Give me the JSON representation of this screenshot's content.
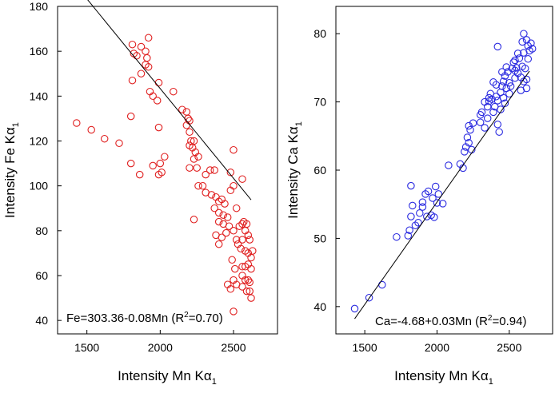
{
  "chart_data": [
    {
      "type": "scatter",
      "id": "fe",
      "color": "#e02020",
      "xlabel": "Intensity Mn Kα",
      "xlabel_sub": "1",
      "ylabel": "Intensity Fe Kα",
      "ylabel_sub": "1",
      "xlim": [
        1300,
        2800
      ],
      "ylim": [
        34,
        180
      ],
      "xticks": [
        1500,
        2000,
        2500
      ],
      "yticks": [
        40,
        60,
        80,
        100,
        120,
        140,
        160,
        180
      ],
      "equation_prefix": "Fe=303.36-0.08Mn (R",
      "equation_sup": "2",
      "equation_suffix": "=0.70)",
      "fit": {
        "x1": 1430,
        "x2": 2620,
        "intercept": 303.36,
        "slope": -0.08,
        "r2": 0.7
      },
      "points": [
        [
          1430,
          128
        ],
        [
          1530,
          125
        ],
        [
          1620,
          121
        ],
        [
          1720,
          119
        ],
        [
          1800,
          110
        ],
        [
          1860,
          105
        ],
        [
          1950,
          109
        ],
        [
          1990,
          105
        ],
        [
          2000,
          110
        ],
        [
          2010,
          106
        ],
        [
          2030,
          113
        ],
        [
          1810,
          163
        ],
        [
          1820,
          159
        ],
        [
          1840,
          158
        ],
        [
          1870,
          162
        ],
        [
          1900,
          160
        ],
        [
          1920,
          166
        ],
        [
          1910,
          157
        ],
        [
          1920,
          153
        ],
        [
          1900,
          154
        ],
        [
          1810,
          147
        ],
        [
          1870,
          150
        ],
        [
          1930,
          142
        ],
        [
          1950,
          140
        ],
        [
          1980,
          138
        ],
        [
          1990,
          146
        ],
        [
          1800,
          131
        ],
        [
          1990,
          126
        ],
        [
          2090,
          142
        ],
        [
          2150,
          134
        ],
        [
          2180,
          133
        ],
        [
          2190,
          130
        ],
        [
          2200,
          129
        ],
        [
          2180,
          127
        ],
        [
          2200,
          124
        ],
        [
          2210,
          120
        ],
        [
          2230,
          120
        ],
        [
          2200,
          118
        ],
        [
          2220,
          117
        ],
        [
          2240,
          115
        ],
        [
          2230,
          112
        ],
        [
          2260,
          113
        ],
        [
          2200,
          108
        ],
        [
          2250,
          108
        ],
        [
          2310,
          105
        ],
        [
          2340,
          107
        ],
        [
          2370,
          107
        ],
        [
          2480,
          106
        ],
        [
          2560,
          103
        ],
        [
          2260,
          100
        ],
        [
          2290,
          100
        ],
        [
          2310,
          97
        ],
        [
          2350,
          96
        ],
        [
          2380,
          95
        ],
        [
          2400,
          93
        ],
        [
          2420,
          94
        ],
        [
          2440,
          92
        ],
        [
          2370,
          90
        ],
        [
          2400,
          88
        ],
        [
          2430,
          87
        ],
        [
          2460,
          86
        ],
        [
          2400,
          84
        ],
        [
          2430,
          83
        ],
        [
          2470,
          82
        ],
        [
          2500,
          80
        ],
        [
          2380,
          78
        ],
        [
          2420,
          77
        ],
        [
          2450,
          79
        ],
        [
          2400,
          74
        ],
        [
          2230,
          85
        ],
        [
          2500,
          116
        ],
        [
          2520,
          90
        ],
        [
          2540,
          82
        ],
        [
          2560,
          83
        ],
        [
          2570,
          84
        ],
        [
          2580,
          80
        ],
        [
          2590,
          83
        ],
        [
          2600,
          78
        ],
        [
          2610,
          76
        ],
        [
          2560,
          76
        ],
        [
          2520,
          76
        ],
        [
          2530,
          74
        ],
        [
          2550,
          72
        ],
        [
          2580,
          71
        ],
        [
          2600,
          70
        ],
        [
          2620,
          68
        ],
        [
          2490,
          67
        ],
        [
          2510,
          63
        ],
        [
          2560,
          60
        ],
        [
          2580,
          58
        ],
        [
          2600,
          58
        ],
        [
          2610,
          57
        ],
        [
          2500,
          58
        ],
        [
          2520,
          56
        ],
        [
          2560,
          55
        ],
        [
          2590,
          53
        ],
        [
          2610,
          53
        ],
        [
          2620,
          50
        ],
        [
          2460,
          56
        ],
        [
          2480,
          54
        ],
        [
          2500,
          44
        ],
        [
          2560,
          64
        ],
        [
          2580,
          64
        ],
        [
          2600,
          65
        ],
        [
          2620,
          63
        ],
        [
          2630,
          71
        ],
        [
          2500,
          100
        ],
        [
          2480,
          98
        ]
      ]
    },
    {
      "type": "scatter",
      "id": "ca",
      "color": "#2a2ae0",
      "xlabel": "Intensity Mn Kα",
      "xlabel_sub": "1",
      "ylabel": "Intensity Ca Kα",
      "ylabel_sub": "1",
      "xlim": [
        1300,
        2800
      ],
      "ylim": [
        36,
        84
      ],
      "xticks": [
        1500,
        2000,
        2500
      ],
      "yticks": [
        40,
        50,
        60,
        70,
        80
      ],
      "equation_prefix": "Ca=-4.68+0.03Mn (R",
      "equation_sup": "2",
      "equation_suffix": "=0.94)",
      "fit": {
        "x1": 1430,
        "x2": 2640,
        "intercept": -4.68,
        "slope": 0.03,
        "r2": 0.94
      },
      "points": [
        [
          1430,
          39.7
        ],
        [
          1530,
          41.3
        ],
        [
          1620,
          43.2
        ],
        [
          1720,
          50.2
        ],
        [
          1800,
          50.4
        ],
        [
          1810,
          51.2
        ],
        [
          1820,
          53.2
        ],
        [
          1850,
          51.9
        ],
        [
          1870,
          52.3
        ],
        [
          1880,
          53.7
        ],
        [
          1900,
          55.3
        ],
        [
          1920,
          56.5
        ],
        [
          1940,
          56.9
        ],
        [
          1960,
          53.4
        ],
        [
          1970,
          55.9
        ],
        [
          1990,
          57.6
        ],
        [
          2000,
          55.2
        ],
        [
          2010,
          56.5
        ],
        [
          2040,
          55.1
        ],
        [
          1820,
          57.7
        ],
        [
          1830,
          54.8
        ],
        [
          1900,
          54.6
        ],
        [
          1930,
          53.2
        ],
        [
          1980,
          53.1
        ],
        [
          2080,
          60.7
        ],
        [
          2160,
          60.9
        ],
        [
          2180,
          60.3
        ],
        [
          2190,
          62.7
        ],
        [
          2200,
          63.4
        ],
        [
          2210,
          64.8
        ],
        [
          2220,
          64.0
        ],
        [
          2220,
          66.5
        ],
        [
          2230,
          65.9
        ],
        [
          2250,
          66.9
        ],
        [
          2240,
          63.0
        ],
        [
          2300,
          67.0
        ],
        [
          2310,
          68.5
        ],
        [
          2330,
          70.0
        ],
        [
          2330,
          66.2
        ],
        [
          2350,
          67.6
        ],
        [
          2360,
          70.1
        ],
        [
          2370,
          71.2
        ],
        [
          2380,
          70.4
        ],
        [
          2390,
          68.5
        ],
        [
          2400,
          69.3
        ],
        [
          2410,
          70.8
        ],
        [
          2410,
          72.5
        ],
        [
          2420,
          66.7
        ],
        [
          2430,
          65.6
        ],
        [
          2420,
          70.2
        ],
        [
          2440,
          71.4
        ],
        [
          2450,
          72.3
        ],
        [
          2460,
          73.0
        ],
        [
          2460,
          70.6
        ],
        [
          2470,
          73.8
        ],
        [
          2480,
          75.1
        ],
        [
          2480,
          72.0
        ],
        [
          2490,
          74.4
        ],
        [
          2500,
          71.2
        ],
        [
          2510,
          72.3
        ],
        [
          2520,
          74.9
        ],
        [
          2530,
          75.8
        ],
        [
          2540,
          73.5
        ],
        [
          2540,
          76.1
        ],
        [
          2550,
          75.0
        ],
        [
          2560,
          74.2
        ],
        [
          2560,
          77.1
        ],
        [
          2570,
          76.4
        ],
        [
          2580,
          73.6
        ],
        [
          2590,
          75.2
        ],
        [
          2590,
          78.8
        ],
        [
          2600,
          77.2
        ],
        [
          2600,
          80.0
        ],
        [
          2610,
          74.9
        ],
        [
          2620,
          79.1
        ],
        [
          2620,
          72.0
        ],
        [
          2630,
          78.2
        ],
        [
          2630,
          76.3
        ],
        [
          2640,
          77.5
        ],
        [
          2650,
          78.6
        ],
        [
          2620,
          73.3
        ],
        [
          2580,
          71.7
        ],
        [
          2420,
          78.1
        ],
        [
          2300,
          68.1
        ],
        [
          2390,
          72.9
        ],
        [
          2450,
          74.4
        ],
        [
          2600,
          73.0
        ],
        [
          2500,
          72.8
        ],
        [
          2660,
          77.8
        ],
        [
          2540,
          74.6
        ],
        [
          2470,
          69.8
        ],
        [
          2350,
          69.3
        ],
        [
          2360,
          70.6
        ],
        [
          2440,
          68.9
        ]
      ]
    }
  ]
}
